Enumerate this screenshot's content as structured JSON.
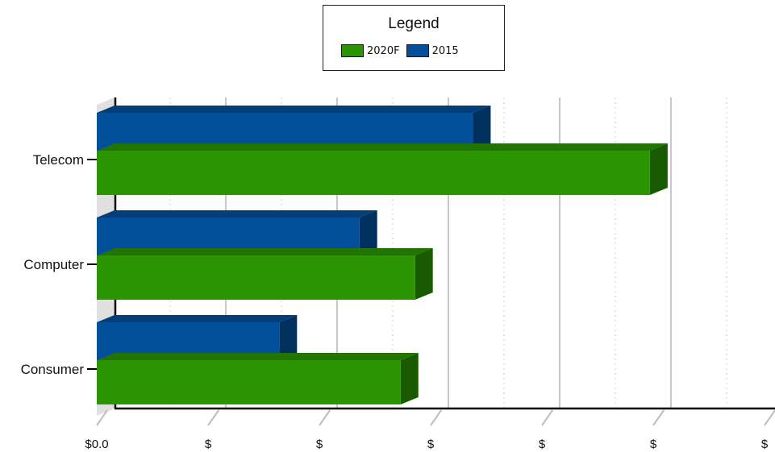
{
  "legend": {
    "title": "Legend",
    "items": [
      {
        "label": "2020F",
        "color": "#2a9500"
      },
      {
        "label": "2015",
        "color": "#024f9c"
      }
    ]
  },
  "chart_data": {
    "type": "bar",
    "orientation": "horizontal",
    "three_d": true,
    "categories": [
      "Telecom",
      "Computer",
      "Consumer"
    ],
    "series": [
      {
        "name": "2020F",
        "color": "#2a9500",
        "values": [
          4.97,
          2.86,
          2.73
        ]
      },
      {
        "name": "2015",
        "color": "#024f9c",
        "values": [
          3.38,
          2.36,
          1.64
        ]
      }
    ],
    "x_tick_labels": [
      "$0.0",
      "$",
      "$",
      "$",
      "$",
      "$",
      "$"
    ],
    "xlim": [
      0,
      6
    ],
    "grid": true,
    "legend_position": "top-center"
  }
}
